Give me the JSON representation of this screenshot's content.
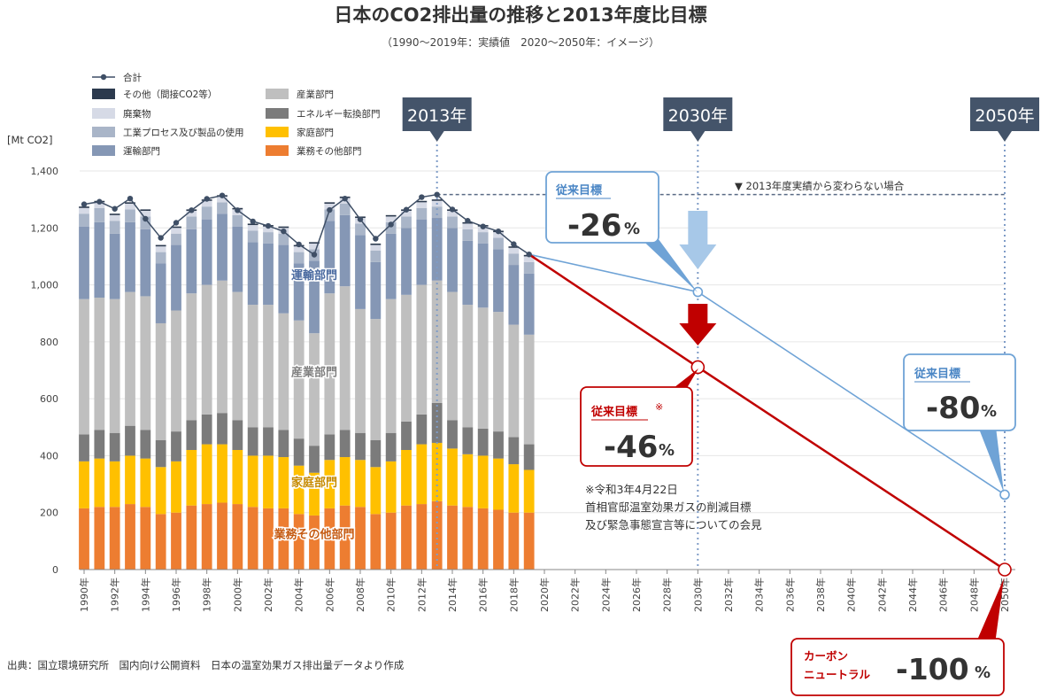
{
  "title": "日本のCO2排出量の推移と2013年度比目標",
  "subtitle": "（1990〜2019年：実績値　2020〜2050年：イメージ）",
  "unit_label": "[Mt CO2]",
  "source": "出典：国立環境研究所　国内向け公開資料　日本の温室効果ガス排出量データより作成",
  "reference_line_label": "▼ 2013年度実績から変わらない場合",
  "markers": [
    {
      "label": "2013年",
      "year": 2013
    },
    {
      "label": "2030年",
      "year": 2030
    },
    {
      "label": "2050年",
      "year": 2050
    }
  ],
  "legend": [
    {
      "label": "合計",
      "type": "line",
      "color": "#3f4f66"
    },
    {
      "label": "その他（間接CO2等）",
      "type": "box",
      "color": "#2c3a4e"
    },
    {
      "label": "産業部門",
      "type": "box",
      "color": "#bfbfbf"
    },
    {
      "label": "廃棄物",
      "type": "box",
      "color": "#d6dae6"
    },
    {
      "label": "エネルギー転換部門",
      "type": "box",
      "color": "#7b7b7b"
    },
    {
      "label": "工業プロセス及び製品の使用",
      "type": "box",
      "color": "#a9b5c8"
    },
    {
      "label": "家庭部門",
      "type": "box",
      "color": "#ffc000"
    },
    {
      "label": "運輸部門",
      "type": "box",
      "color": "#8597b5"
    },
    {
      "label": "業務その他部門",
      "type": "box",
      "color": "#ed7d31"
    }
  ],
  "sector_labels": [
    {
      "label": "運輸部門",
      "year": 2005,
      "y": 1020,
      "color": "#4a6aa0"
    },
    {
      "label": "産業部門",
      "year": 2005,
      "y": 680,
      "color": "#7f7f7f"
    },
    {
      "label": "家庭部門",
      "year": 2005,
      "y": 292,
      "color": "#c68a00"
    },
    {
      "label": "業務その他部門",
      "year": 2005,
      "y": 110,
      "color": "#c55a11"
    }
  ],
  "callouts": {
    "blue_2030": {
      "title": "従来目標",
      "value": "-26",
      "pct": "%"
    },
    "red_2030": {
      "title": "従来目標",
      "mark": "※",
      "value": "-46",
      "pct": "%"
    },
    "blue_2050": {
      "title": "従来目標",
      "value": "-80",
      "pct": "%"
    },
    "red_2050": {
      "line1": "カーボン",
      "line2": "ニュートラル",
      "value": "-100",
      "pct": "%"
    }
  },
  "note_lines": [
    "※令和3年4月22日",
    "首相官邸温室効果ガスの削減目標",
    "及び緊急事態宣言等についての会見"
  ],
  "colors": {
    "blue_path": "#6fa3d6",
    "red_path": "#c00000",
    "marker_box": "#44546a",
    "arrow_light_blue": "#a7c8e8",
    "arrow_red": "#c00000"
  },
  "chart_data": {
    "type": "bar",
    "xlabel": "",
    "ylabel": "Mt CO2",
    "ylim": [
      0,
      1400
    ],
    "yticks": [
      0,
      200,
      400,
      600,
      800,
      1000,
      1200,
      1400
    ],
    "xlim": [
      1990,
      2050
    ],
    "xticks": [
      1990,
      1992,
      1994,
      1996,
      1998,
      2000,
      2002,
      2004,
      2006,
      2008,
      2010,
      2012,
      2014,
      2016,
      2018,
      2020,
      2022,
      2024,
      2026,
      2028,
      2030,
      2032,
      2034,
      2036,
      2038,
      2040,
      2042,
      2044,
      2046,
      2048,
      2050
    ],
    "tick_suffix": "年",
    "grid": true,
    "years": [
      1990,
      1991,
      1992,
      1993,
      1994,
      1995,
      1996,
      1997,
      1998,
      1999,
      2000,
      2001,
      2002,
      2003,
      2004,
      2005,
      2006,
      2007,
      2008,
      2009,
      2010,
      2011,
      2012,
      2013,
      2014,
      2015,
      2016,
      2017,
      2018,
      2019
    ],
    "series": [
      {
        "name": "業務その他部門",
        "color": "#ed7d31",
        "values": [
          215,
          220,
          220,
          230,
          220,
          195,
          200,
          225,
          230,
          235,
          230,
          220,
          215,
          215,
          195,
          190,
          215,
          225,
          220,
          195,
          200,
          225,
          230,
          240,
          225,
          220,
          215,
          210,
          200,
          200
        ]
      },
      {
        "name": "家庭部門",
        "color": "#ffc000",
        "values": [
          165,
          170,
          160,
          170,
          170,
          165,
          180,
          195,
          210,
          205,
          190,
          180,
          185,
          180,
          170,
          150,
          170,
          170,
          165,
          165,
          180,
          195,
          210,
          205,
          200,
          185,
          185,
          180,
          170,
          150
        ]
      },
      {
        "name": "エネルギー転換部門",
        "color": "#7b7b7b",
        "values": [
          95,
          100,
          100,
          105,
          100,
          95,
          105,
          105,
          105,
          110,
          105,
          100,
          100,
          95,
          95,
          95,
          90,
          95,
          95,
          95,
          100,
          100,
          105,
          140,
          100,
          95,
          95,
          95,
          95,
          90
        ]
      },
      {
        "name": "産業部門",
        "color": "#bfbfbf",
        "values": [
          475,
          465,
          470,
          470,
          470,
          410,
          425,
          445,
          455,
          465,
          450,
          430,
          430,
          410,
          415,
          395,
          495,
          505,
          435,
          425,
          470,
          445,
          455,
          430,
          450,
          430,
          425,
          420,
          395,
          385
        ]
      },
      {
        "name": "運輸部門",
        "color": "#8597b5",
        "values": [
          255,
          265,
          230,
          245,
          235,
          210,
          230,
          225,
          230,
          235,
          230,
          220,
          215,
          240,
          200,
          255,
          255,
          250,
          260,
          200,
          230,
          235,
          230,
          220,
          225,
          225,
          225,
          220,
          210,
          215
        ]
      },
      {
        "name": "工業プロセス及び製品の使用",
        "color": "#a9b5c8",
        "values": [
          45,
          50,
          45,
          45,
          45,
          40,
          40,
          45,
          45,
          40,
          40,
          40,
          40,
          40,
          40,
          40,
          40,
          40,
          40,
          40,
          40,
          40,
          40,
          40,
          40,
          40,
          40,
          40,
          40,
          40
        ]
      },
      {
        "name": "廃棄物",
        "color": "#d6dae6",
        "values": [
          20,
          20,
          20,
          20,
          20,
          20,
          20,
          20,
          20,
          20,
          20,
          20,
          20,
          20,
          20,
          20,
          20,
          20,
          20,
          20,
          20,
          20,
          20,
          20,
          20,
          20,
          20,
          20,
          20,
          20
        ]
      },
      {
        "name": "その他（間接CO2等）",
        "color": "#2c3a4e",
        "values": [
          5,
          5,
          5,
          5,
          5,
          5,
          5,
          5,
          5,
          5,
          5,
          5,
          5,
          5,
          5,
          5,
          5,
          5,
          5,
          5,
          5,
          5,
          5,
          5,
          5,
          5,
          5,
          5,
          5,
          5
        ]
      }
    ],
    "total": {
      "name": "合計",
      "color": "#3f4f66",
      "values": [
        1283,
        1292,
        1267,
        1303,
        1232,
        1165,
        1218,
        1262,
        1302,
        1314,
        1262,
        1223,
        1207,
        1188,
        1142,
        1106,
        1263,
        1303,
        1230,
        1162,
        1212,
        1264,
        1308,
        1317,
        1265,
        1225,
        1205,
        1188,
        1143,
        1107
      ]
    },
    "reference_value": 1317,
    "projections": [
      {
        "name": "従来目標 -26%",
        "color": "#6fa3d6",
        "points": [
          [
            2019,
            1107
          ],
          [
            2030,
            975
          ],
          [
            2050,
            263
          ]
        ]
      },
      {
        "name": "従来目標 -46%",
        "color": "#c00000",
        "points": [
          [
            2019,
            1107
          ],
          [
            2030,
            711
          ],
          [
            2050,
            0
          ]
        ]
      }
    ]
  }
}
